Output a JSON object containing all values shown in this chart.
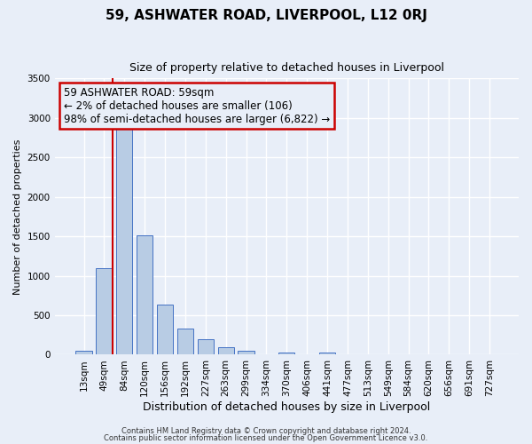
{
  "title": "59, ASHWATER ROAD, LIVERPOOL, L12 0RJ",
  "subtitle": "Size of property relative to detached houses in Liverpool",
  "xlabel": "Distribution of detached houses by size in Liverpool",
  "ylabel": "Number of detached properties",
  "bar_labels": [
    "13sqm",
    "49sqm",
    "84sqm",
    "120sqm",
    "156sqm",
    "192sqm",
    "227sqm",
    "263sqm",
    "299sqm",
    "334sqm",
    "370sqm",
    "406sqm",
    "441sqm",
    "477sqm",
    "513sqm",
    "549sqm",
    "584sqm",
    "620sqm",
    "656sqm",
    "691sqm",
    "727sqm"
  ],
  "bar_values": [
    50,
    1100,
    2920,
    1510,
    640,
    330,
    200,
    95,
    50,
    0,
    30,
    0,
    25,
    0,
    0,
    0,
    0,
    0,
    0,
    0,
    0
  ],
  "bar_color": "#b8cce4",
  "bar_edge_color": "#4472c4",
  "vline_color": "#cc0000",
  "vline_position": 1.4,
  "ylim": [
    0,
    3500
  ],
  "yticks": [
    0,
    500,
    1000,
    1500,
    2000,
    2500,
    3000,
    3500
  ],
  "annotation_title": "59 ASHWATER ROAD: 59sqm",
  "annotation_line1": "← 2% of detached houses are smaller (106)",
  "annotation_line2": "98% of semi-detached houses are larger (6,822) →",
  "annotation_box_color": "#cc0000",
  "footer1": "Contains HM Land Registry data © Crown copyright and database right 2024.",
  "footer2": "Contains public sector information licensed under the Open Government Licence v3.0.",
  "bg_color": "#e8eef8",
  "title_fontsize": 11,
  "subtitle_fontsize": 9,
  "xlabel_fontsize": 9,
  "ylabel_fontsize": 8,
  "tick_fontsize": 7.5,
  "annotation_fontsize": 8.5,
  "footer_fontsize": 6
}
